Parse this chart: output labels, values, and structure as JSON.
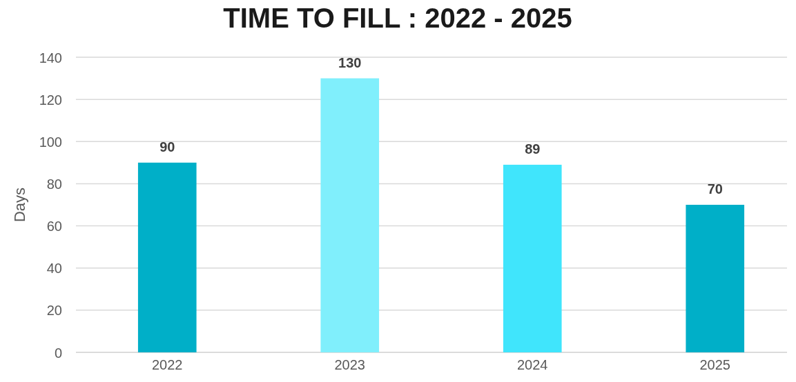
{
  "chart_data": {
    "type": "bar",
    "title": "TIME TO FILL : 2022 - 2025",
    "ylabel": "Days",
    "categories": [
      "2022",
      "2023",
      "2024",
      "2025"
    ],
    "values": [
      90,
      130,
      89,
      70
    ],
    "colors": [
      "#00afc8",
      "#80effc",
      "#40e5fc",
      "#00afc8"
    ],
    "ylim": [
      0,
      140
    ],
    "yticks": [
      0,
      20,
      40,
      60,
      80,
      100,
      120,
      140
    ],
    "grid": "y",
    "data_labels": true
  }
}
